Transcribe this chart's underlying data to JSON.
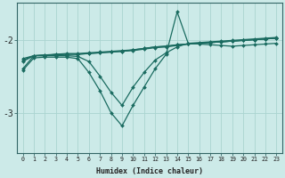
{
  "xlabel": "Humidex (Indice chaleur)",
  "background_color": "#cceae8",
  "grid_color": "#aad4d0",
  "line_color": "#1a6b60",
  "x_values": [
    0,
    1,
    2,
    3,
    4,
    5,
    6,
    7,
    8,
    9,
    10,
    11,
    12,
    13,
    14,
    15,
    16,
    17,
    18,
    19,
    20,
    21,
    22,
    23
  ],
  "lines": [
    [
      -2.3,
      -2.22,
      -2.22,
      -2.2,
      -2.2,
      -2.2,
      -2.19,
      -2.18,
      -2.17,
      -2.16,
      -2.15,
      -2.13,
      -2.11,
      -2.1,
      -2.08,
      -2.06,
      -2.05,
      -2.04,
      -2.03,
      -2.02,
      -2.01,
      -2.0,
      -1.99,
      -1.98
    ],
    [
      -2.28,
      -2.22,
      -2.21,
      -2.2,
      -2.19,
      -2.19,
      -2.18,
      -2.17,
      -2.16,
      -2.15,
      -2.14,
      -2.12,
      -2.1,
      -2.09,
      -2.07,
      -2.06,
      -2.05,
      -2.04,
      -2.03,
      -2.02,
      -2.01,
      -2.0,
      -1.99,
      -1.98
    ],
    [
      -2.26,
      -2.22,
      -2.21,
      -2.21,
      -2.2,
      -2.2,
      -2.19,
      -2.18,
      -2.17,
      -2.16,
      -2.14,
      -2.12,
      -2.1,
      -2.09,
      -2.07,
      -2.06,
      -2.05,
      -2.04,
      -2.03,
      -2.02,
      -2.01,
      -2.0,
      -1.99,
      -1.98
    ],
    [
      -2.4,
      -2.22,
      -2.22,
      -2.22,
      -2.22,
      -2.23,
      -2.3,
      -2.5,
      -2.72,
      -2.9,
      -2.65,
      -2.45,
      -2.28,
      -2.18,
      -2.1,
      -2.05,
      -2.04,
      -2.03,
      -2.02,
      -2.01,
      -2.0,
      -1.99,
      -1.98,
      -1.97
    ],
    [
      -2.42,
      -2.25,
      -2.24,
      -2.24,
      -2.24,
      -2.26,
      -2.45,
      -2.7,
      -3.0,
      -3.18,
      -2.9,
      -2.65,
      -2.4,
      -2.2,
      -1.62,
      -2.05,
      -2.06,
      -2.07,
      -2.08,
      -2.09,
      -2.08,
      -2.07,
      -2.06,
      -2.05
    ]
  ],
  "yticks": [
    -3,
    -2
  ],
  "ylim": [
    -3.55,
    -1.5
  ],
  "xlim": [
    -0.5,
    23.5
  ],
  "figsize": [
    3.2,
    2.0
  ],
  "dpi": 100
}
